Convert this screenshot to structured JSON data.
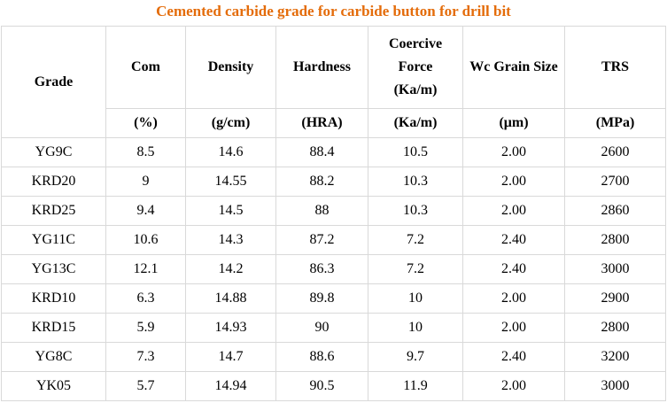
{
  "title": "Cemented carbide grade for carbide button for drill bit",
  "headers": {
    "grade": "Grade",
    "com": "Com",
    "density": "Density",
    "hardness": "Hardness",
    "coercive_1": "Coercive",
    "coercive_2": "Force",
    "coercive_3": "(Ka/m)",
    "grain": "Wc Grain Size",
    "trs": "TRS"
  },
  "units": {
    "com": "(%)",
    "density": "(g/cm)",
    "hardness": "(HRA)",
    "coercive": "(Ka/m)",
    "grain": "(μm)",
    "trs": "(MPa)"
  },
  "rows": [
    {
      "grade": "YG9C",
      "com": "8.5",
      "density": "14.6",
      "hardness": "88.4",
      "coercive": "10.5",
      "grain": "2.00",
      "trs": "2600"
    },
    {
      "grade": "KRD20",
      "com": "9",
      "density": "14.55",
      "hardness": "88.2",
      "coercive": "10.3",
      "grain": "2.00",
      "trs": "2700"
    },
    {
      "grade": "KRD25",
      "com": "9.4",
      "density": "14.5",
      "hardness": "88",
      "coercive": "10.3",
      "grain": "2.00",
      "trs": "2860"
    },
    {
      "grade": "YG11C",
      "com": "10.6",
      "density": "14.3",
      "hardness": "87.2",
      "coercive": "7.2",
      "grain": "2.40",
      "trs": "2800"
    },
    {
      "grade": "YG13C",
      "com": "12.1",
      "density": "14.2",
      "hardness": "86.3",
      "coercive": "7.2",
      "grain": "2.40",
      "trs": "3000"
    },
    {
      "grade": "KRD10",
      "com": "6.3",
      "density": "14.88",
      "hardness": "89.8",
      "coercive": "10",
      "grain": "2.00",
      "trs": "2900"
    },
    {
      "grade": "KRD15",
      "com": "5.9",
      "density": "14.93",
      "hardness": "90",
      "coercive": "10",
      "grain": "2.00",
      "trs": "2800"
    },
    {
      "grade": "YG8C",
      "com": "7.3",
      "density": "14.7",
      "hardness": "88.6",
      "coercive": "9.7",
      "grain": "2.40",
      "trs": "3200"
    },
    {
      "grade": "YK05",
      "com": "5.7",
      "density": "14.94",
      "hardness": "90.5",
      "coercive": "11.9",
      "grain": "2.00",
      "trs": "3000"
    }
  ]
}
